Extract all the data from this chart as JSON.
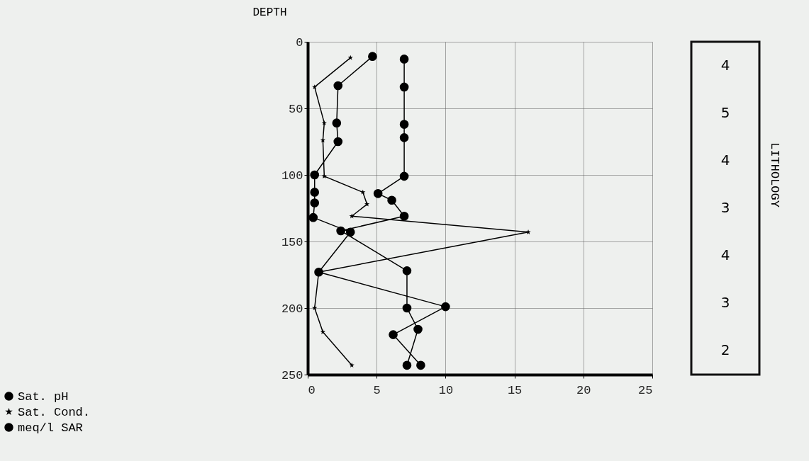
{
  "chart_data": {
    "type": "line",
    "ylabel": "DEPTH",
    "xlim": [
      0,
      25
    ],
    "xticks": [
      0,
      5,
      10,
      15,
      20,
      25
    ],
    "ylim": [
      250,
      0
    ],
    "yticks": [
      0,
      50,
      100,
      150,
      200,
      250
    ],
    "grid": true,
    "legend": "bottom left",
    "line_style": "solid",
    "series": [
      {
        "name": "Sat.  pH",
        "color": "#000000",
        "marker": "circle",
        "x": [
          7,
          7,
          7,
          7,
          7,
          5.1,
          6.1,
          7,
          2.4,
          7.2,
          7.2,
          8,
          7.2
        ],
        "values": [
          13,
          34,
          62,
          72,
          101,
          114,
          119,
          131,
          142,
          172,
          200,
          216,
          243
        ]
      },
      {
        "name": "Sat. Cond.",
        "color": "#000000",
        "marker": "star",
        "x": [
          3.1,
          0.5,
          1.2,
          1.1,
          1.2,
          4,
          4.3,
          3.2,
          16,
          0.8,
          0.5,
          1.1,
          3.2
        ],
        "values": [
          12,
          34,
          61,
          74,
          101,
          113,
          122,
          131,
          143,
          173,
          200,
          218,
          243
        ]
      },
      {
        "name": "meq/l SAR",
        "color": "#000000",
        "marker": "circle",
        "x": [
          4.7,
          2.2,
          2.1,
          2.2,
          0.5,
          0.5,
          0.5,
          0.4,
          3.1,
          0.8,
          10,
          6.2,
          8.2
        ],
        "values": [
          11,
          33,
          61,
          75,
          100,
          113,
          121,
          132,
          143,
          173,
          199,
          220,
          243
        ]
      }
    ],
    "annotations": [
      "4",
      "5",
      "4",
      "3",
      "4",
      "3",
      "2",
      "LITHOLOGY"
    ]
  }
}
